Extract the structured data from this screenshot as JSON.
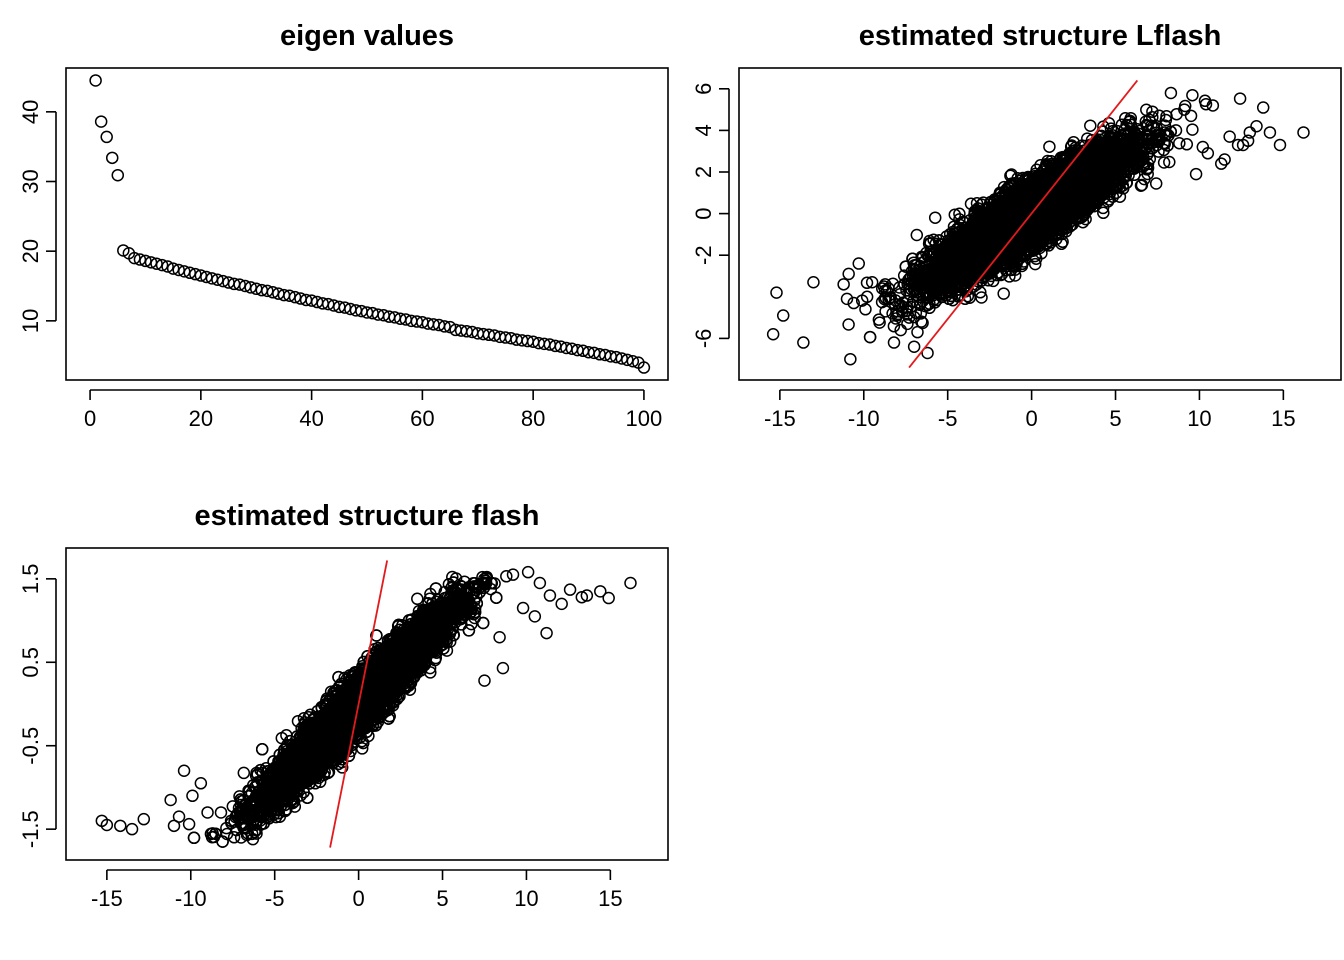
{
  "chart_data": [
    {
      "type": "scatter",
      "title": "eigen values",
      "xlabel": "",
      "ylabel": "",
      "xlim": [
        0,
        100
      ],
      "ylim": [
        3.3,
        44.5
      ],
      "x_ticks": [
        0,
        20,
        40,
        60,
        80,
        100
      ],
      "y_ticks": [
        10,
        20,
        30,
        40
      ],
      "grid": false,
      "series": [
        {
          "x": [
            1,
            2,
            3,
            4,
            5,
            6,
            7,
            8,
            9,
            10,
            11,
            12,
            13,
            14,
            15,
            16,
            17,
            18,
            19,
            20,
            21,
            22,
            23,
            24,
            25,
            26,
            27,
            28,
            29,
            30,
            31,
            32,
            33,
            34,
            35,
            36,
            37,
            38,
            39,
            40,
            41,
            42,
            43,
            44,
            45,
            46,
            47,
            48,
            49,
            50,
            51,
            52,
            53,
            54,
            55,
            56,
            57,
            58,
            59,
            60,
            61,
            62,
            63,
            64,
            65,
            66,
            67,
            68,
            69,
            70,
            71,
            72,
            73,
            74,
            75,
            76,
            77,
            78,
            79,
            80,
            81,
            82,
            83,
            84,
            85,
            86,
            87,
            88,
            89,
            90,
            91,
            92,
            93,
            94,
            95,
            96,
            97,
            98,
            99,
            100
          ],
          "y": [
            44.5,
            38.6,
            36.4,
            33.4,
            30.9,
            20.1,
            19.7,
            19.0,
            18.8,
            18.6,
            18.4,
            18.2,
            18.0,
            17.8,
            17.5,
            17.3,
            17.1,
            16.9,
            16.7,
            16.5,
            16.3,
            16.1,
            15.9,
            15.7,
            15.5,
            15.3,
            15.2,
            15.0,
            14.8,
            14.6,
            14.4,
            14.3,
            14.1,
            13.9,
            13.7,
            13.6,
            13.4,
            13.2,
            13.0,
            12.9,
            12.7,
            12.5,
            12.4,
            12.2,
            12.0,
            11.9,
            11.7,
            11.5,
            11.4,
            11.2,
            11.1,
            10.9,
            10.8,
            10.6,
            10.5,
            10.3,
            10.2,
            10.0,
            9.9,
            9.8,
            9.6,
            9.5,
            9.4,
            9.2,
            9.1,
            8.7,
            8.6,
            8.5,
            8.4,
            8.2,
            8.1,
            8.0,
            7.9,
            7.7,
            7.6,
            7.5,
            7.3,
            7.2,
            7.1,
            7.0,
            6.8,
            6.7,
            6.6,
            6.4,
            6.3,
            6.1,
            6.0,
            5.8,
            5.7,
            5.5,
            5.4,
            5.2,
            5.1,
            4.9,
            4.8,
            4.6,
            4.4,
            4.2,
            4.0,
            3.3
          ]
        }
      ]
    },
    {
      "type": "scatter",
      "title": "estimated structure Lflash",
      "xlabel": "",
      "ylabel": "",
      "xlim": [
        -16,
        17
      ],
      "ylim": [
        -7.4,
        6.4
      ],
      "x_ticks": [
        -15,
        -10,
        -5,
        0,
        5,
        10,
        15
      ],
      "y_ticks": [
        -6,
        -2,
        0,
        2,
        4,
        6
      ],
      "grid": false,
      "cloud": {
        "n_points": 7000,
        "x_mean": 0,
        "x_sd": 2.9,
        "slope": 0.5,
        "noise_sd": 0.75,
        "y_min": -7,
        "y_max": 5.9
      },
      "outliers": {
        "x": [
          -15.2,
          -15.4,
          -14.8,
          -13.6,
          -13.0,
          -11.2,
          -10.9,
          -10.6,
          -10.3,
          -9.9,
          -9.5,
          -9.1,
          -8.7,
          -8.2,
          -7.8,
          -7.4,
          -7.0,
          -6.6,
          -6.2,
          -10.8,
          -11.0,
          -9.8,
          -8.9,
          -7.3,
          -6.8,
          9.5,
          10.2,
          10.8,
          11.3,
          11.8,
          12.3,
          12.9,
          13.4,
          13.8,
          14.2,
          14.8,
          16.2,
          8.3,
          9.8,
          12.6,
          11.5,
          10.5,
          8.0,
          9.1,
          13.0
        ],
        "y": [
          -3.8,
          -5.8,
          -4.9,
          -6.2,
          -3.3,
          -3.4,
          -2.9,
          -4.3,
          -2.4,
          -4.6,
          -3.3,
          -5.1,
          -4.7,
          -6.2,
          -5.6,
          -5.3,
          -6.4,
          -4.8,
          -6.7,
          -7.0,
          -4.1,
          -4.0,
          -3.6,
          -5.0,
          -5.7,
          4.7,
          3.2,
          5.2,
          2.4,
          3.7,
          3.3,
          3.5,
          4.2,
          5.1,
          3.9,
          3.3,
          3.9,
          5.8,
          1.9,
          3.3,
          2.6,
          2.9,
          4.5,
          5.0,
          3.9
        ]
      },
      "fit_line": {
        "x": [
          -7.3,
          6.3
        ],
        "y": [
          -7.4,
          6.4
        ],
        "color": "#e31a1c"
      }
    },
    {
      "type": "scatter",
      "title": "estimated structure flash",
      "xlabel": "",
      "ylabel": "",
      "xlim": [
        -16,
        17
      ],
      "ylim": [
        -1.72,
        1.72
      ],
      "x_ticks": [
        -15,
        -10,
        -5,
        0,
        5,
        10,
        15
      ],
      "y_ticks": [
        -1.5,
        -0.5,
        0.5,
        1.5
      ],
      "y_tick_labels": [
        "-1.5",
        "-0.5",
        "0.5",
        "1.5"
      ],
      "grid": false,
      "cloud": {
        "n_points": 7000,
        "x_mean": 0,
        "x_sd": 2.9,
        "slope": 0.2,
        "noise_sd": 0.17,
        "y_min": -1.65,
        "y_max": 1.55
      },
      "outliers": {
        "x": [
          -15.3,
          -15.0,
          -14.2,
          -13.5,
          -12.8,
          -11.2,
          -11.0,
          -10.7,
          -10.4,
          -10.1,
          -9.9,
          -9.4,
          -9.0,
          -8.7,
          -8.2,
          -7.6,
          -7.0,
          -6.6,
          -6.3,
          10.1,
          10.8,
          11.4,
          12.1,
          12.6,
          13.3,
          13.6,
          14.4,
          14.9,
          16.2,
          11.2,
          9.2,
          8.6,
          10.5,
          9.8,
          7.5,
          8.4
        ],
        "y": [
          -1.4,
          -1.45,
          -1.46,
          -1.5,
          -1.38,
          -1.15,
          -1.46,
          -1.35,
          -0.8,
          -1.44,
          -1.1,
          -0.95,
          -1.3,
          -1.55,
          -1.3,
          -1.4,
          -1.6,
          -1.55,
          -1.62,
          1.58,
          1.45,
          1.3,
          1.2,
          1.37,
          1.28,
          1.3,
          1.35,
          1.27,
          1.45,
          0.85,
          1.55,
          0.43,
          1.05,
          1.15,
          0.28,
          0.8
        ]
      },
      "fit_line": {
        "x": [
          -1.7,
          1.7
        ],
        "y": [
          -1.72,
          1.72
        ],
        "color": "#e31a1c"
      }
    }
  ]
}
